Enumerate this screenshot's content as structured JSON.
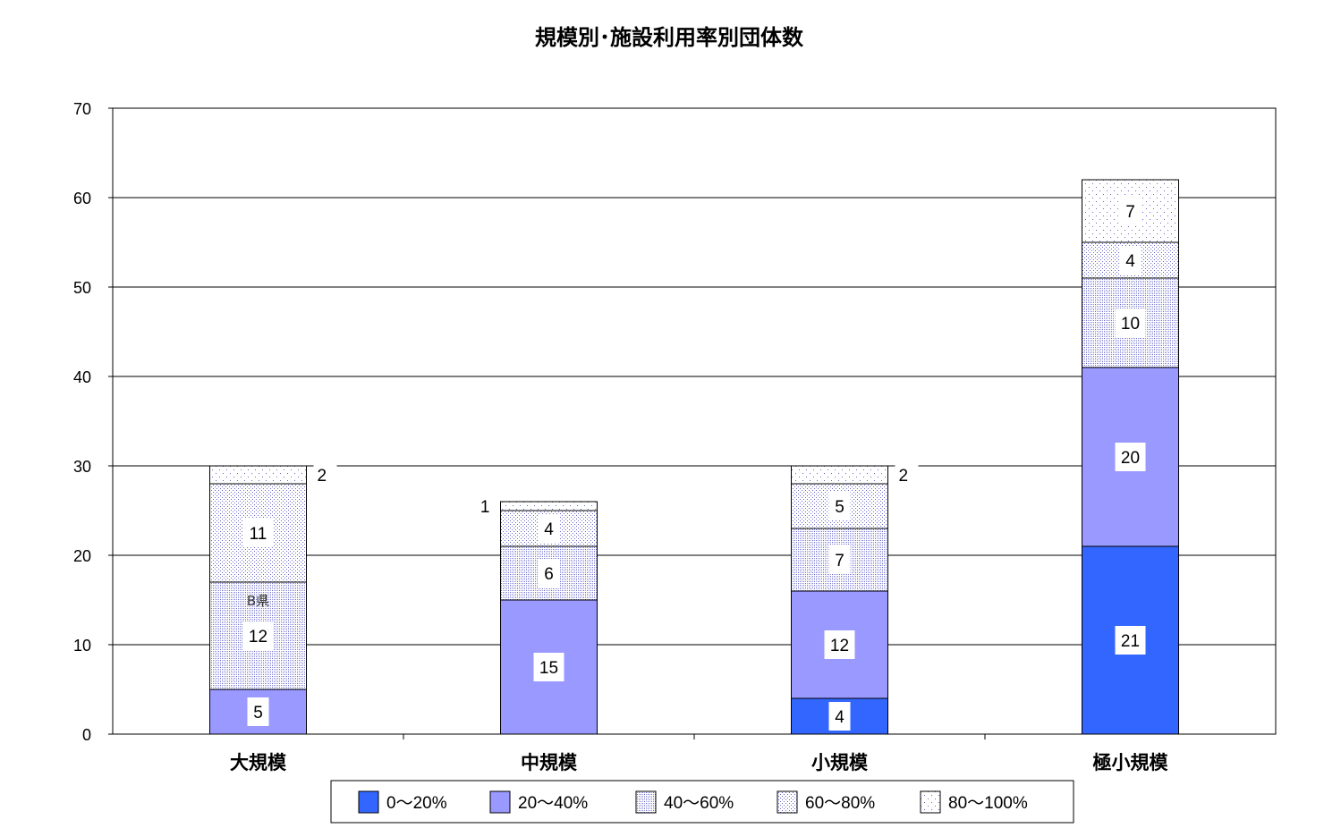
{
  "chart_data": {
    "type": "bar",
    "stacked": true,
    "title": "規模別･施設利用率別団体数",
    "xlabel": "",
    "ylabel": "",
    "categories": [
      "大規模",
      "中規模",
      "小規模",
      "極小規模"
    ],
    "ylim": [
      0,
      70
    ],
    "yticks": [
      0,
      10,
      20,
      30,
      40,
      50,
      60,
      70
    ],
    "grid": true,
    "legend_position": "bottom",
    "series": [
      {
        "name": "0～20%",
        "values": [
          0,
          0,
          4,
          21
        ],
        "color": "#3366ff",
        "pattern": "solid"
      },
      {
        "name": "20～40%",
        "values": [
          5,
          15,
          12,
          20
        ],
        "color": "#9999ff",
        "pattern": "solid"
      },
      {
        "name": "40～60%",
        "values": [
          12,
          6,
          7,
          10
        ],
        "color": "#6666cc",
        "pattern": "dense-dots"
      },
      {
        "name": "60～80%",
        "values": [
          11,
          4,
          5,
          4
        ],
        "color": "#6666cc",
        "pattern": "medium-dots"
      },
      {
        "name": "80～100%",
        "values": [
          2,
          1,
          2,
          7
        ],
        "color": "#6666cc",
        "pattern": "sparse-dots"
      }
    ],
    "annotations": [
      {
        "text": "B県",
        "category": "大規模",
        "near_value": 15
      }
    ]
  }
}
